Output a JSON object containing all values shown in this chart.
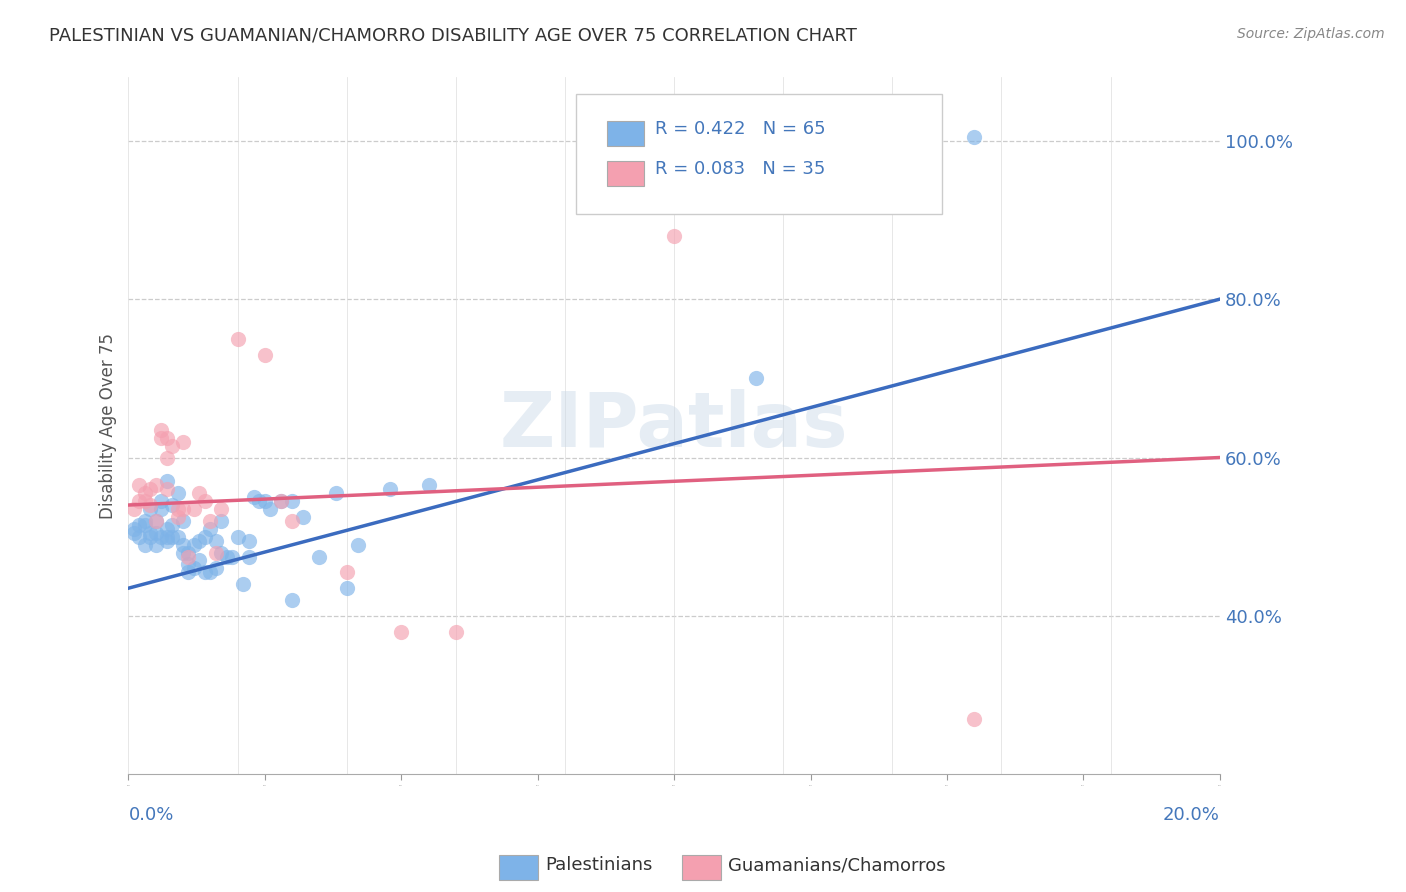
{
  "title": "PALESTINIAN VS GUAMANIAN/CHAMORRO DISABILITY AGE OVER 75 CORRELATION CHART",
  "source": "Source: ZipAtlas.com",
  "ylabel": "Disability Age Over 75",
  "legend_label_1": "Palestinians",
  "legend_label_2": "Guamanians/Chamorros",
  "r1": 0.422,
  "n1": 65,
  "r2": 0.083,
  "n2": 35,
  "color1": "#7EB3E8",
  "color2": "#F4A0B0",
  "trendline1_color": "#3B6BBF",
  "trendline2_color": "#E06080",
  "watermark": "ZIPatlas",
  "xmin": 0.0,
  "xmax": 0.2,
  "ymin": 0.2,
  "ymax": 1.08,
  "yticks": [
    0.4,
    0.6,
    0.8,
    1.0
  ],
  "blue_points": [
    [
      0.001,
      0.505
    ],
    [
      0.001,
      0.51
    ],
    [
      0.002,
      0.515
    ],
    [
      0.002,
      0.5
    ],
    [
      0.003,
      0.52
    ],
    [
      0.003,
      0.49
    ],
    [
      0.003,
      0.515
    ],
    [
      0.004,
      0.505
    ],
    [
      0.004,
      0.5
    ],
    [
      0.004,
      0.535
    ],
    [
      0.005,
      0.52
    ],
    [
      0.005,
      0.505
    ],
    [
      0.005,
      0.49
    ],
    [
      0.006,
      0.5
    ],
    [
      0.006,
      0.535
    ],
    [
      0.006,
      0.545
    ],
    [
      0.007,
      0.5
    ],
    [
      0.007,
      0.51
    ],
    [
      0.007,
      0.495
    ],
    [
      0.007,
      0.57
    ],
    [
      0.008,
      0.515
    ],
    [
      0.008,
      0.5
    ],
    [
      0.008,
      0.54
    ],
    [
      0.009,
      0.555
    ],
    [
      0.009,
      0.5
    ],
    [
      0.01,
      0.49
    ],
    [
      0.01,
      0.48
    ],
    [
      0.01,
      0.52
    ],
    [
      0.011,
      0.455
    ],
    [
      0.011,
      0.465
    ],
    [
      0.011,
      0.48
    ],
    [
      0.012,
      0.49
    ],
    [
      0.012,
      0.46
    ],
    [
      0.013,
      0.495
    ],
    [
      0.013,
      0.47
    ],
    [
      0.014,
      0.5
    ],
    [
      0.014,
      0.455
    ],
    [
      0.015,
      0.51
    ],
    [
      0.015,
      0.455
    ],
    [
      0.016,
      0.46
    ],
    [
      0.016,
      0.495
    ],
    [
      0.017,
      0.52
    ],
    [
      0.017,
      0.48
    ],
    [
      0.018,
      0.475
    ],
    [
      0.019,
      0.475
    ],
    [
      0.02,
      0.5
    ],
    [
      0.021,
      0.44
    ],
    [
      0.022,
      0.495
    ],
    [
      0.022,
      0.475
    ],
    [
      0.023,
      0.55
    ],
    [
      0.024,
      0.545
    ],
    [
      0.025,
      0.545
    ],
    [
      0.026,
      0.535
    ],
    [
      0.028,
      0.545
    ],
    [
      0.03,
      0.545
    ],
    [
      0.03,
      0.42
    ],
    [
      0.032,
      0.525
    ],
    [
      0.035,
      0.475
    ],
    [
      0.038,
      0.555
    ],
    [
      0.04,
      0.435
    ],
    [
      0.042,
      0.49
    ],
    [
      0.048,
      0.56
    ],
    [
      0.055,
      0.565
    ],
    [
      0.115,
      0.7
    ],
    [
      0.155,
      1.005
    ]
  ],
  "pink_points": [
    [
      0.001,
      0.535
    ],
    [
      0.002,
      0.545
    ],
    [
      0.002,
      0.565
    ],
    [
      0.003,
      0.555
    ],
    [
      0.003,
      0.545
    ],
    [
      0.004,
      0.54
    ],
    [
      0.004,
      0.56
    ],
    [
      0.005,
      0.565
    ],
    [
      0.005,
      0.52
    ],
    [
      0.006,
      0.635
    ],
    [
      0.006,
      0.625
    ],
    [
      0.007,
      0.6
    ],
    [
      0.007,
      0.56
    ],
    [
      0.007,
      0.625
    ],
    [
      0.008,
      0.615
    ],
    [
      0.009,
      0.525
    ],
    [
      0.009,
      0.535
    ],
    [
      0.01,
      0.62
    ],
    [
      0.01,
      0.535
    ],
    [
      0.011,
      0.475
    ],
    [
      0.012,
      0.535
    ],
    [
      0.013,
      0.555
    ],
    [
      0.014,
      0.545
    ],
    [
      0.015,
      0.52
    ],
    [
      0.016,
      0.48
    ],
    [
      0.017,
      0.535
    ],
    [
      0.02,
      0.75
    ],
    [
      0.025,
      0.73
    ],
    [
      0.028,
      0.545
    ],
    [
      0.03,
      0.52
    ],
    [
      0.04,
      0.455
    ],
    [
      0.05,
      0.38
    ],
    [
      0.06,
      0.38
    ],
    [
      0.1,
      0.88
    ],
    [
      0.155,
      0.27
    ]
  ]
}
